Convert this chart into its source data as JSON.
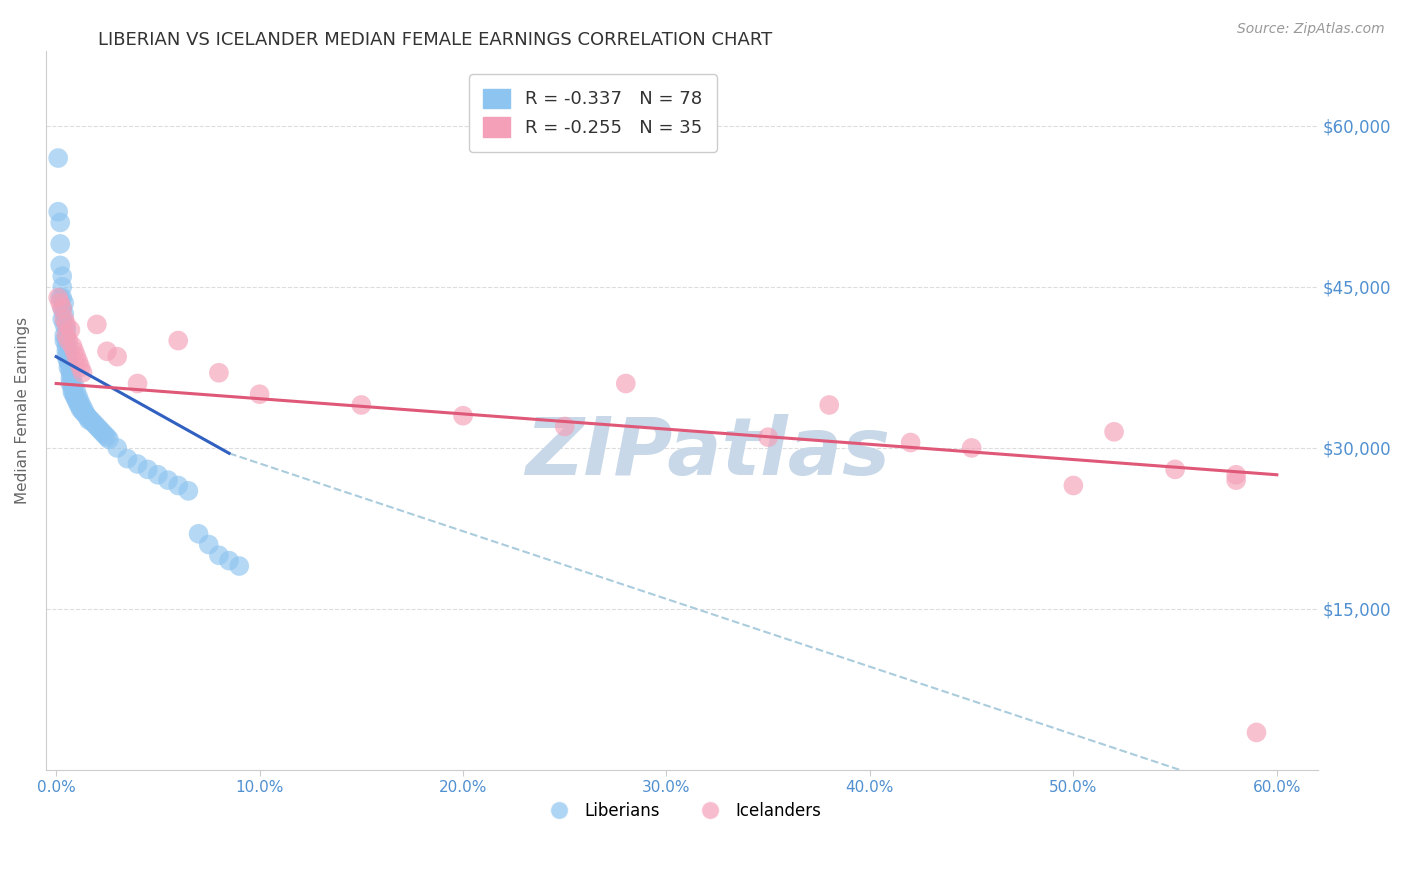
{
  "title": "LIBERIAN VS ICELANDER MEDIAN FEMALE EARNINGS CORRELATION CHART",
  "source": "Source: ZipAtlas.com",
  "ylabel": "Median Female Earnings",
  "xlabel": "",
  "y_tick_labels": [
    "$60,000",
    "$45,000",
    "$30,000",
    "$15,000"
  ],
  "y_tick_values": [
    60000,
    45000,
    30000,
    15000
  ],
  "ylim": [
    0,
    67000
  ],
  "xlim": [
    -0.005,
    0.62
  ],
  "x_tick_labels": [
    "0.0%",
    "10.0%",
    "20.0%",
    "30.0%",
    "40.0%",
    "50.0%",
    "60.0%"
  ],
  "x_tick_values": [
    0.0,
    0.1,
    0.2,
    0.3,
    0.4,
    0.5,
    0.6
  ],
  "liberian_R": -0.337,
  "liberian_N": 78,
  "icelander_R": -0.255,
  "icelander_N": 35,
  "liberian_color": "#8EC4F0",
  "icelander_color": "#F4A0B8",
  "liberian_line_color": "#3060C0",
  "icelander_line_color": "#E05878",
  "dashed_line_color": "#AACCDD",
  "watermark_color": "#C8D8E8",
  "title_color": "#333333",
  "source_color": "#999999",
  "tick_label_color": "#5090D0",
  "background_color": "#FFFFFF",
  "grid_color": "#DDDDDD",
  "legend_label1": "R = -0.337   N = 78",
  "legend_label2": "R = -0.255   N = 35",
  "liberian_x": [
    0.001,
    0.001,
    0.002,
    0.002,
    0.002,
    0.003,
    0.003,
    0.003,
    0.003,
    0.004,
    0.004,
    0.004,
    0.004,
    0.005,
    0.005,
    0.005,
    0.005,
    0.006,
    0.006,
    0.006,
    0.007,
    0.007,
    0.007,
    0.008,
    0.008,
    0.008,
    0.009,
    0.009,
    0.01,
    0.01,
    0.011,
    0.011,
    0.012,
    0.012,
    0.013,
    0.014,
    0.015,
    0.016,
    0.017,
    0.018,
    0.019,
    0.02,
    0.021,
    0.022,
    0.023,
    0.024,
    0.025,
    0.026,
    0.002,
    0.003,
    0.004,
    0.005,
    0.006,
    0.007,
    0.008,
    0.009,
    0.01,
    0.011,
    0.012,
    0.013,
    0.014,
    0.015,
    0.016,
    0.03,
    0.035,
    0.04,
    0.045,
    0.05,
    0.055,
    0.06,
    0.065,
    0.07,
    0.075,
    0.08,
    0.085,
    0.09
  ],
  "liberian_y": [
    57000,
    52000,
    49000,
    47000,
    51000,
    46000,
    45000,
    44000,
    43000,
    42500,
    43500,
    41500,
    40500,
    41000,
    40000,
    39500,
    38500,
    38000,
    37500,
    39000,
    37000,
    36500,
    36000,
    35800,
    35500,
    35200,
    35000,
    34800,
    34600,
    34400,
    34200,
    34000,
    33800,
    33600,
    33400,
    33200,
    33000,
    32800,
    32600,
    32400,
    32200,
    32000,
    31800,
    31600,
    31400,
    31200,
    31000,
    30800,
    44000,
    42000,
    40000,
    39000,
    38000,
    37200,
    36500,
    35800,
    35200,
    34700,
    34200,
    33800,
    33400,
    33000,
    32600,
    30000,
    29000,
    28500,
    28000,
    27500,
    27000,
    26500,
    26000,
    22000,
    21000,
    20000,
    19500,
    19000
  ],
  "icelander_x": [
    0.001,
    0.002,
    0.003,
    0.004,
    0.005,
    0.005,
    0.006,
    0.007,
    0.008,
    0.009,
    0.01,
    0.011,
    0.012,
    0.013,
    0.02,
    0.025,
    0.03,
    0.04,
    0.06,
    0.08,
    0.1,
    0.15,
    0.2,
    0.25,
    0.28,
    0.35,
    0.38,
    0.42,
    0.45,
    0.5,
    0.52,
    0.55,
    0.58,
    0.58,
    0.59
  ],
  "icelander_y": [
    44000,
    43500,
    43000,
    42000,
    41500,
    40500,
    40000,
    41000,
    39500,
    39000,
    38500,
    38000,
    37500,
    37000,
    41500,
    39000,
    38500,
    36000,
    40000,
    37000,
    35000,
    34000,
    33000,
    32000,
    36000,
    31000,
    34000,
    30500,
    30000,
    26500,
    31500,
    28000,
    27000,
    27500,
    3500
  ],
  "liberian_line_x": [
    0.0,
    0.085
  ],
  "liberian_line_y": [
    38500,
    29500
  ],
  "icelander_line_x": [
    0.0,
    0.6
  ],
  "icelander_line_y": [
    36000,
    27500
  ],
  "dashed_line_x": [
    0.085,
    0.6
  ],
  "dashed_line_y": [
    29500,
    -3000
  ]
}
